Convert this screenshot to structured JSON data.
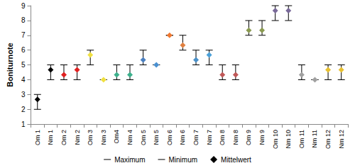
{
  "chart_data": {
    "type": "range",
    "ylabel": "Boniturnote",
    "categories": [
      "Om 1",
      "Nm 1",
      "Om 2",
      "Nm 2",
      "Om 3",
      "Nm 3",
      "Om4",
      "Nm 4",
      "Om 5",
      "Nm 5",
      "Om 6",
      "Nm 6",
      "Om 7",
      "Nm 7",
      "Om 8",
      "Nm 8",
      "Om 9",
      "Nm 9",
      "Om 10",
      "Nm 10",
      "Om 11",
      "Nm 11",
      "Om 12",
      "Nm 12"
    ],
    "series": [
      {
        "name": "Maximum",
        "color": "#000000",
        "marker": "dash",
        "values": [
          3,
          5,
          5,
          5,
          6,
          4,
          5,
          5,
          6,
          5,
          7,
          7,
          6,
          6,
          5,
          5,
          8,
          8,
          9,
          9,
          5,
          4,
          5,
          5
        ]
      },
      {
        "name": "Minimum",
        "color": "#000000",
        "marker": "dash",
        "values": [
          2,
          4,
          4,
          4,
          5,
          4,
          4,
          4,
          5,
          5,
          7,
          6,
          5,
          5,
          4,
          4,
          7,
          7,
          8,
          8,
          4,
          4,
          4,
          4
        ]
      },
      {
        "name": "Mittelwert",
        "color": "#000000",
        "marker": "diamond",
        "colors": [
          "#000000",
          "#000000",
          "#e02020",
          "#e02020",
          "#f0e040",
          "#f0e040",
          "#3cb08c",
          "#3cb08c",
          "#4a7fc0",
          "#4a90d0",
          "#f07830",
          "#e08040",
          "#4a90c8",
          "#4aa0d8",
          "#c05858",
          "#c05858",
          "#8a9a50",
          "#8a9a50",
          "#7a6a9a",
          "#7a6a9a",
          "#a0a0a0",
          "#a0a0a0",
          "#e8c030",
          "#e8c030"
        ],
        "values": [
          2.67,
          4.67,
          4.33,
          4.67,
          5.67,
          4,
          4.33,
          4.33,
          5.33,
          5,
          7,
          6.33,
          5.33,
          5.67,
          4.33,
          4.33,
          7.33,
          7.33,
          8.67,
          8.67,
          4.33,
          4,
          4.67,
          4.67
        ]
      }
    ],
    "ylim": [
      1,
      9
    ],
    "yticks": [
      1,
      2,
      3,
      4,
      5,
      6,
      7,
      8,
      9
    ],
    "grid": false,
    "legend": "bottom"
  }
}
